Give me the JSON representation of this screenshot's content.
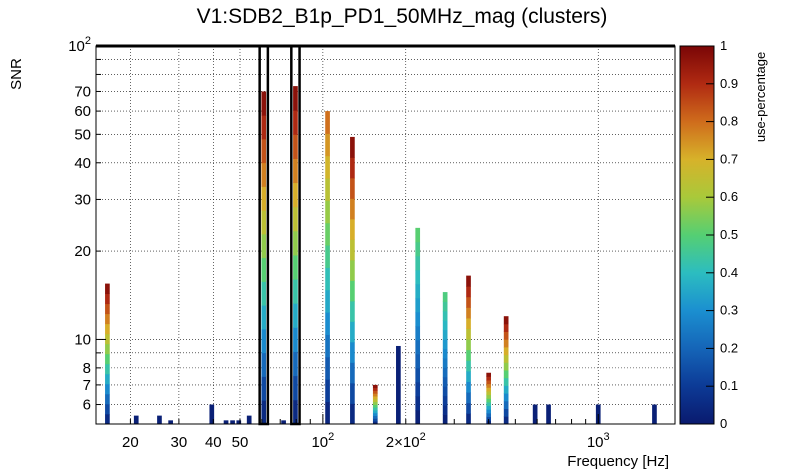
{
  "chart_data": {
    "type": "heatmap",
    "title": "V1:SDB2_B1p_PD1_50MHz_mag (clusters)",
    "xlabel": "Frequency [Hz]",
    "ylabel": "SNR",
    "colorbar_label": "use-percentage",
    "x_scale": "log",
    "y_scale": "log",
    "xlim": [
      15,
      1900
    ],
    "ylim": [
      5.15,
      100
    ],
    "grid": true,
    "x_ticks": [
      {
        "value": 20,
        "label": "20"
      },
      {
        "value": 30,
        "label": "30"
      },
      {
        "value": 40,
        "label": "40"
      },
      {
        "value": 50,
        "label": "50"
      },
      {
        "value": 100,
        "label": "10",
        "sup": "2"
      },
      {
        "value": 200,
        "label": "2×10",
        "sup": "2"
      },
      {
        "value": 1000,
        "label": "10",
        "sup": "3"
      }
    ],
    "y_ticks": [
      {
        "value": 6,
        "label": "6"
      },
      {
        "value": 7,
        "label": "7"
      },
      {
        "value": 8,
        "label": "8"
      },
      {
        "value": 10,
        "label": "10"
      },
      {
        "value": 20,
        "label": "20"
      },
      {
        "value": 30,
        "label": "30"
      },
      {
        "value": 40,
        "label": "40"
      },
      {
        "value": 50,
        "label": "50"
      },
      {
        "value": 60,
        "label": "60"
      },
      {
        "value": 70,
        "label": "70"
      },
      {
        "value": 100,
        "label": "10",
        "sup": "2"
      }
    ],
    "colorbar_ticks": [
      "0",
      "0.1",
      "0.2",
      "0.3",
      "0.4",
      "0.5",
      "0.6",
      "0.7",
      "0.8",
      "0.9",
      "1"
    ],
    "color_range": [
      0,
      1
    ],
    "columns": [
      {
        "x": 16.5,
        "snr_max": 15.5
      },
      {
        "x": 21.0,
        "snr_max": 5.5
      },
      {
        "x": 25.5,
        "snr_max": 5.5
      },
      {
        "x": 28.0,
        "snr_max": 5.3
      },
      {
        "x": 39.5,
        "snr_max": 6.0
      },
      {
        "x": 44.5,
        "snr_max": 5.3
      },
      {
        "x": 47.0,
        "snr_max": 5.3
      },
      {
        "x": 49.5,
        "snr_max": 5.3
      },
      {
        "x": 54.0,
        "snr_max": 5.5
      },
      {
        "x": 61.0,
        "snr_max": 70.0
      },
      {
        "x": 72.0,
        "snr_max": 5.3
      },
      {
        "x": 79.5,
        "snr_max": 73.0
      },
      {
        "x": 104.0,
        "snr_max": 60.0
      },
      {
        "x": 128.0,
        "snr_max": 49.0
      },
      {
        "x": 155.0,
        "snr_max": 7.0
      },
      {
        "x": 188.0,
        "snr_max": 9.5
      },
      {
        "x": 221.0,
        "snr_max": 24.0
      },
      {
        "x": 278.0,
        "snr_max": 14.5
      },
      {
        "x": 338.0,
        "snr_max": 16.5
      },
      {
        "x": 400.0,
        "snr_max": 7.7
      },
      {
        "x": 463.0,
        "snr_max": 12.0
      },
      {
        "x": 590.0,
        "snr_max": 6.0
      },
      {
        "x": 660.0,
        "snr_max": 6.0
      },
      {
        "x": 1000.0,
        "snr_max": 6.0
      },
      {
        "x": 1600.0,
        "snr_max": 6.0
      }
    ],
    "peaks": [
      {
        "x": 16.5,
        "snr_max": 15.5,
        "max_use": 1.0
      },
      {
        "x": 61.0,
        "snr_max": 70.0,
        "max_use": 1.0
      },
      {
        "x": 79.5,
        "snr_max": 73.0,
        "max_use": 1.0
      },
      {
        "x": 104.0,
        "snr_max": 60.0,
        "max_use": 0.82
      },
      {
        "x": 128.0,
        "snr_max": 49.0,
        "max_use": 1.0
      },
      {
        "x": 155.0,
        "snr_max": 7.0,
        "max_use": 1.0
      },
      {
        "x": 221.0,
        "snr_max": 24.0,
        "max_use": 0.52
      },
      {
        "x": 278.0,
        "snr_max": 14.5,
        "max_use": 0.5
      },
      {
        "x": 338.0,
        "snr_max": 16.5,
        "max_use": 1.0
      },
      {
        "x": 400.0,
        "snr_max": 7.7,
        "max_use": 1.0
      },
      {
        "x": 463.0,
        "snr_max": 12.0,
        "max_use": 1.0
      }
    ],
    "highlighted_columns": [
      61,
      79.5
    ]
  }
}
